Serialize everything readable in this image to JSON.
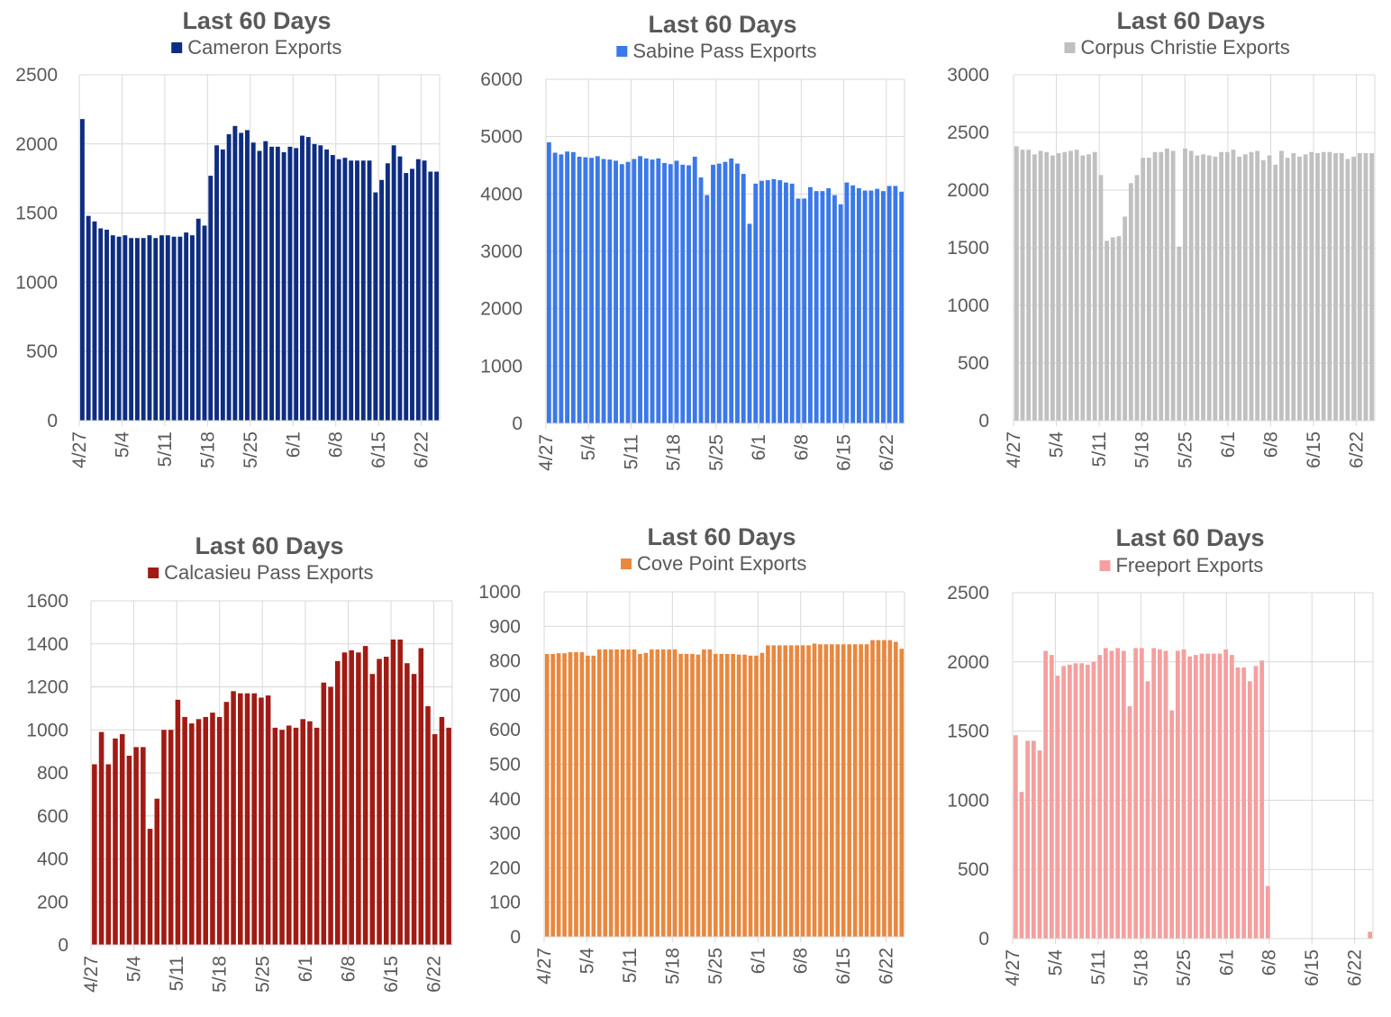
{
  "chart_data": [
    {
      "type": "bar",
      "title": "Last 60 Days",
      "series": [
        {
          "name": "Cameron Exports",
          "color": "#0e2d82",
          "values": [
            2180,
            1480,
            1440,
            1390,
            1380,
            1340,
            1330,
            1340,
            1320,
            1320,
            1320,
            1340,
            1320,
            1340,
            1340,
            1330,
            1330,
            1360,
            1340,
            1460,
            1410,
            1770,
            1990,
            1960,
            2070,
            2130,
            2080,
            2100,
            2010,
            1950,
            2020,
            1980,
            1980,
            1940,
            1980,
            1970,
            2060,
            2050,
            2000,
            1990,
            1960,
            1920,
            1890,
            1900,
            1880,
            1880,
            1880,
            1880,
            1650,
            1740,
            1860,
            1990,
            1910,
            1790,
            1820,
            1890,
            1880,
            1800,
            1800
          ]
        }
      ],
      "ylim": [
        0,
        2500
      ],
      "yticks": [
        0,
        500,
        1000,
        1500,
        2000,
        2500
      ],
      "xticks": [
        "4/27",
        "5/4",
        "5/11",
        "5/18",
        "5/25",
        "6/1",
        "6/8",
        "6/15",
        "6/22"
      ]
    },
    {
      "type": "bar",
      "title": "Last 60 Days",
      "series": [
        {
          "name": "Sabine Pass Exports",
          "color": "#3b78ea",
          "values": [
            4900,
            4720,
            4690,
            4740,
            4730,
            4650,
            4640,
            4630,
            4660,
            4610,
            4600,
            4580,
            4520,
            4560,
            4610,
            4660,
            4620,
            4600,
            4620,
            4540,
            4520,
            4580,
            4510,
            4500,
            4650,
            4290,
            3980,
            4510,
            4530,
            4560,
            4620,
            4530,
            4350,
            3480,
            4180,
            4230,
            4240,
            4260,
            4240,
            4200,
            4180,
            3920,
            3920,
            4120,
            4050,
            4050,
            4100,
            3980,
            3820,
            4200,
            4150,
            4100,
            4060,
            4060,
            4090,
            4050,
            4140,
            4140,
            4040
          ]
        }
      ],
      "ylim": [
        0,
        6000
      ],
      "yticks": [
        0,
        1000,
        2000,
        3000,
        4000,
        5000,
        6000
      ],
      "xticks": [
        "4/27",
        "5/4",
        "5/11",
        "5/18",
        "5/25",
        "6/1",
        "6/8",
        "6/15",
        "6/22"
      ]
    },
    {
      "type": "bar",
      "title": "Last 60 Days",
      "series": [
        {
          "name": "Corpus Christie Exports",
          "color": "#c0c0c0",
          "values": [
            2380,
            2350,
            2350,
            2310,
            2340,
            2330,
            2300,
            2320,
            2330,
            2340,
            2350,
            2300,
            2310,
            2330,
            2130,
            1560,
            1590,
            1600,
            1770,
            2060,
            2130,
            2280,
            2280,
            2330,
            2330,
            2360,
            2340,
            1510,
            2360,
            2340,
            2300,
            2310,
            2300,
            2290,
            2330,
            2330,
            2350,
            2290,
            2310,
            2330,
            2340,
            2260,
            2300,
            2220,
            2340,
            2280,
            2320,
            2290,
            2310,
            2330,
            2320,
            2330,
            2330,
            2320,
            2320,
            2270,
            2290,
            2320,
            2320,
            2320
          ]
        }
      ],
      "ylim": [
        0,
        3000
      ],
      "yticks": [
        0,
        500,
        1000,
        1500,
        2000,
        2500,
        3000
      ],
      "xticks": [
        "4/27",
        "5/4",
        "5/11",
        "5/18",
        "5/25",
        "6/1",
        "6/8",
        "6/15",
        "6/22"
      ]
    },
    {
      "type": "bar",
      "title": "Last 60 Days",
      "series": [
        {
          "name": "Calcasieu Pass Exports",
          "color": "#a11b14",
          "values": [
            840,
            990,
            840,
            960,
            980,
            880,
            920,
            920,
            540,
            680,
            1000,
            1000,
            1140,
            1060,
            1030,
            1050,
            1060,
            1080,
            1060,
            1130,
            1180,
            1170,
            1170,
            1170,
            1150,
            1160,
            1010,
            1000,
            1020,
            1010,
            1050,
            1040,
            1010,
            1220,
            1200,
            1320,
            1360,
            1370,
            1360,
            1390,
            1260,
            1330,
            1340,
            1420,
            1420,
            1310,
            1260,
            1380,
            1110,
            980,
            1060,
            1010
          ]
        }
      ],
      "ylim": [
        0,
        1600
      ],
      "yticks": [
        0,
        200,
        400,
        600,
        800,
        1000,
        1200,
        1400,
        1600
      ],
      "xticks": [
        "4/27",
        "5/4",
        "5/11",
        "5/18",
        "5/25",
        "6/1",
        "6/8",
        "6/15",
        "6/22"
      ]
    },
    {
      "type": "bar",
      "title": "Last 60 Days",
      "series": [
        {
          "name": "Cove Point Exports",
          "color": "#e8883f",
          "values": [
            820,
            820,
            822,
            822,
            825,
            825,
            825,
            815,
            815,
            833,
            833,
            833,
            833,
            833,
            833,
            833,
            820,
            823,
            833,
            833,
            833,
            833,
            833,
            820,
            820,
            820,
            818,
            833,
            833,
            820,
            820,
            820,
            820,
            818,
            818,
            815,
            815,
            823,
            845,
            845,
            845,
            845,
            845,
            845,
            845,
            845,
            850,
            848,
            848,
            848,
            848,
            848,
            848,
            848,
            848,
            848,
            860,
            860,
            860,
            860,
            855,
            835
          ]
        }
      ],
      "ylim": [
        0,
        1000
      ],
      "yticks": [
        0,
        100,
        200,
        300,
        400,
        500,
        600,
        700,
        800,
        900,
        1000
      ],
      "xticks": [
        "4/27",
        "5/4",
        "5/11",
        "5/18",
        "5/25",
        "6/1",
        "6/8",
        "6/15",
        "6/22"
      ]
    },
    {
      "type": "bar",
      "title": "Last 60 Days",
      "series": [
        {
          "name": "Freeport Exports",
          "color": "#f4a0a0",
          "values": [
            1470,
            1060,
            1430,
            1430,
            1360,
            2080,
            2050,
            1900,
            1970,
            1980,
            1990,
            1990,
            1980,
            2000,
            2050,
            2100,
            2080,
            2100,
            2080,
            1680,
            2100,
            2100,
            1860,
            2100,
            2090,
            2080,
            1650,
            2080,
            2090,
            2040,
            2050,
            2060,
            2060,
            2060,
            2060,
            2090,
            2050,
            1960,
            1960,
            1860,
            1970,
            2010,
            380,
            0,
            0,
            0,
            0,
            0,
            0,
            0,
            0,
            0,
            0,
            0,
            0,
            0,
            0,
            0,
            0,
            50
          ]
        }
      ],
      "ylim": [
        0,
        2500
      ],
      "yticks": [
        0,
        500,
        1000,
        1500,
        2000,
        2500
      ],
      "xticks": [
        "4/27",
        "5/4",
        "5/11",
        "5/18",
        "5/25",
        "6/1",
        "6/8",
        "6/15",
        "6/22"
      ]
    }
  ]
}
